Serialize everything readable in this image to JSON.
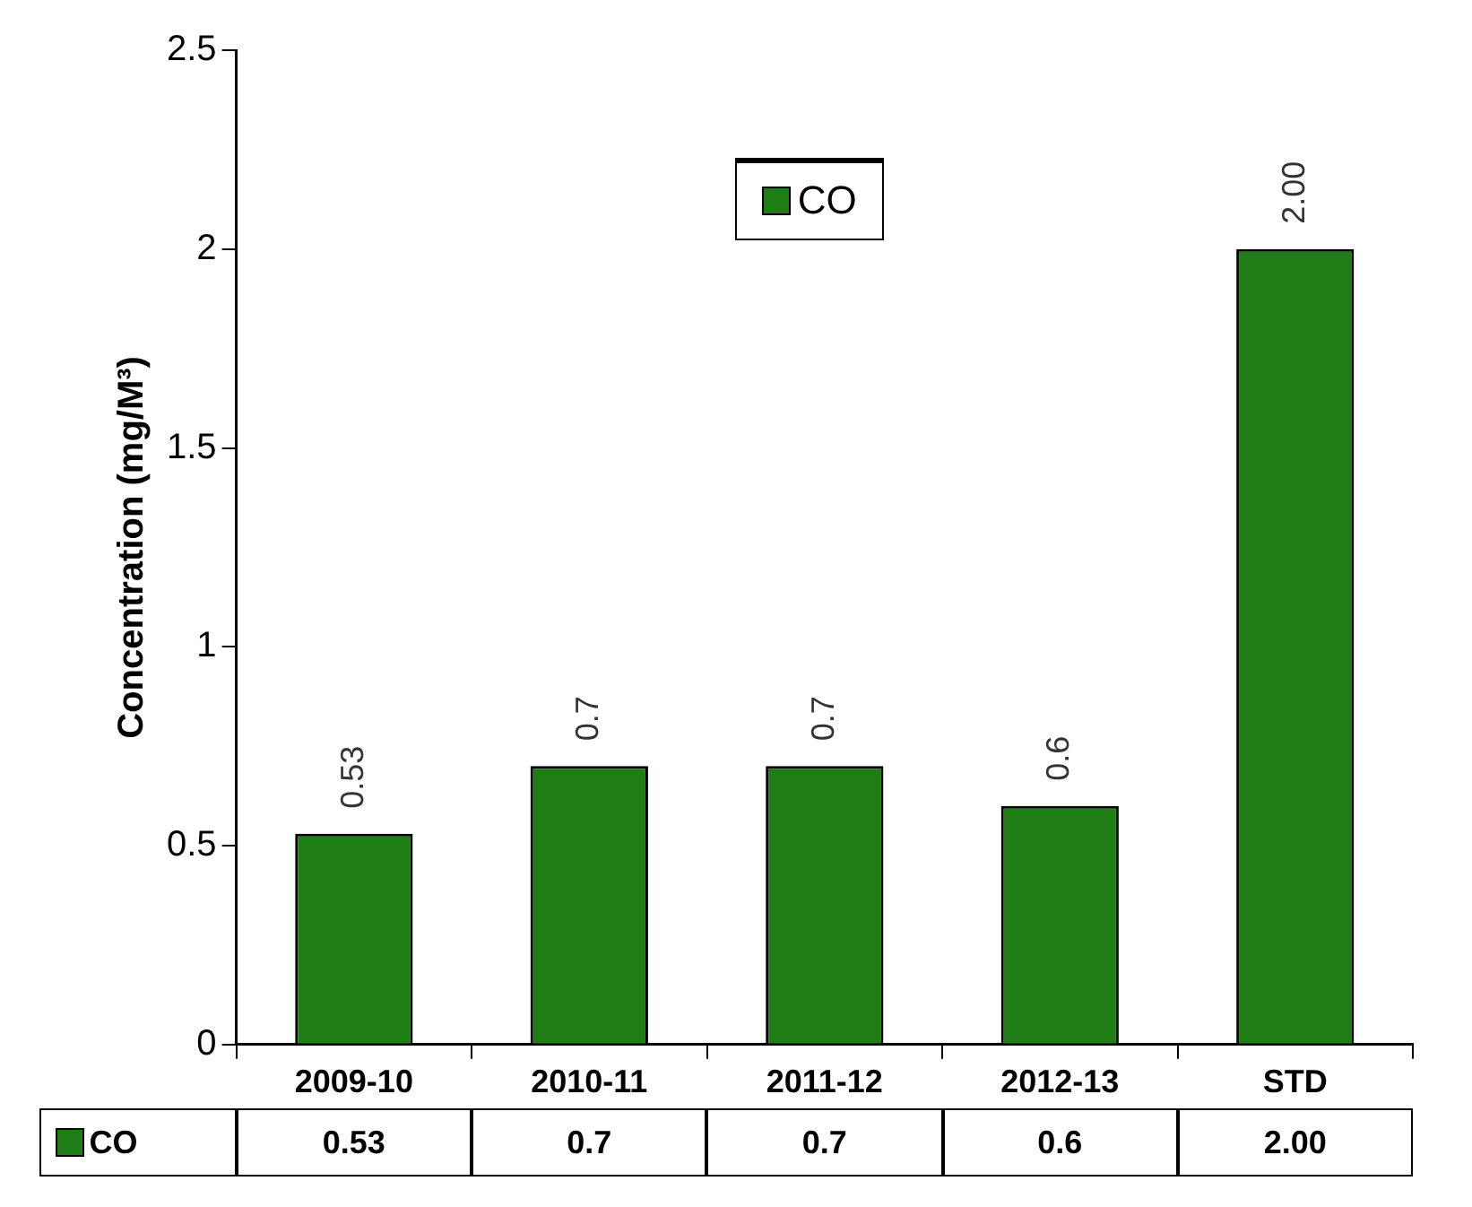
{
  "chart_data": {
    "type": "bar",
    "ylabel": "Concentration (mg/M³)",
    "categories": [
      "2009-10",
      "2010-11",
      "2011-12",
      "2012-13",
      "STD"
    ],
    "series": [
      {
        "name": "CO",
        "color": "#1e7d14",
        "values": [
          0.53,
          0.7,
          0.7,
          0.6,
          2.0
        ],
        "value_labels": [
          "0.53",
          "0.7",
          "0.7",
          "0.6",
          "2.00"
        ]
      }
    ],
    "ylim": [
      0,
      2.5
    ],
    "yticks": [
      0,
      0.5,
      1,
      1.5,
      2,
      2.5
    ],
    "legend": "top"
  }
}
